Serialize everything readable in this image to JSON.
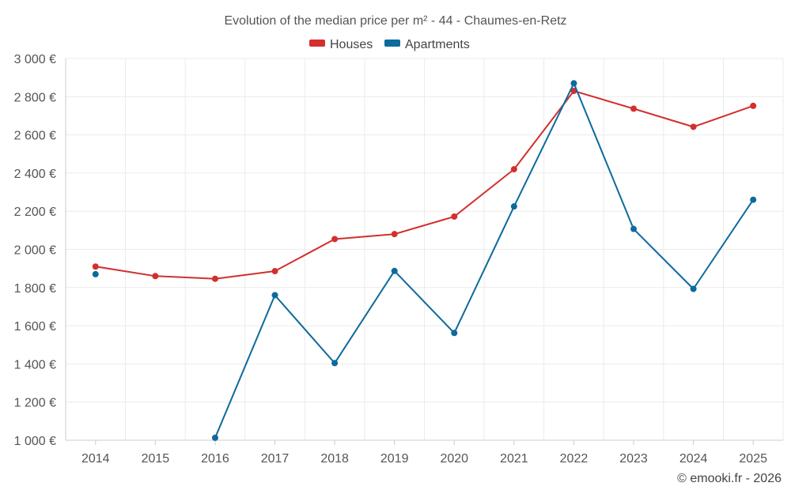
{
  "chart_data": {
    "type": "line",
    "title": "Evolution of the median price per m² - 44 - Chaumes-en-Retz",
    "categories": [
      "2014",
      "2015",
      "2016",
      "2017",
      "2018",
      "2019",
      "2020",
      "2021",
      "2022",
      "2023",
      "2024",
      "2025"
    ],
    "series": [
      {
        "name": "Houses",
        "color": "#d32f2f",
        "values": [
          1910,
          1860,
          1846,
          1886,
          2054,
          2080,
          2172,
          2420,
          2830,
          2737,
          2642,
          2752
        ]
      },
      {
        "name": "Apartments",
        "color": "#0d6a9c",
        "values": [
          1870,
          null,
          1013,
          1760,
          1404,
          1887,
          1562,
          2225,
          2870,
          2107,
          1793,
          2260
        ]
      }
    ],
    "y_ticks": [
      "1 000 €",
      "1 200 €",
      "1 400 €",
      "1 600 €",
      "1 800 €",
      "2 000 €",
      "2 200 €",
      "2 400 €",
      "2 600 €",
      "2 800 €",
      "3 000 €"
    ],
    "ylim": [
      1000,
      3000
    ],
    "ystep": 200,
    "legend_position": "top-center",
    "grid": true
  },
  "credit": "© emooki.fr - 2026"
}
